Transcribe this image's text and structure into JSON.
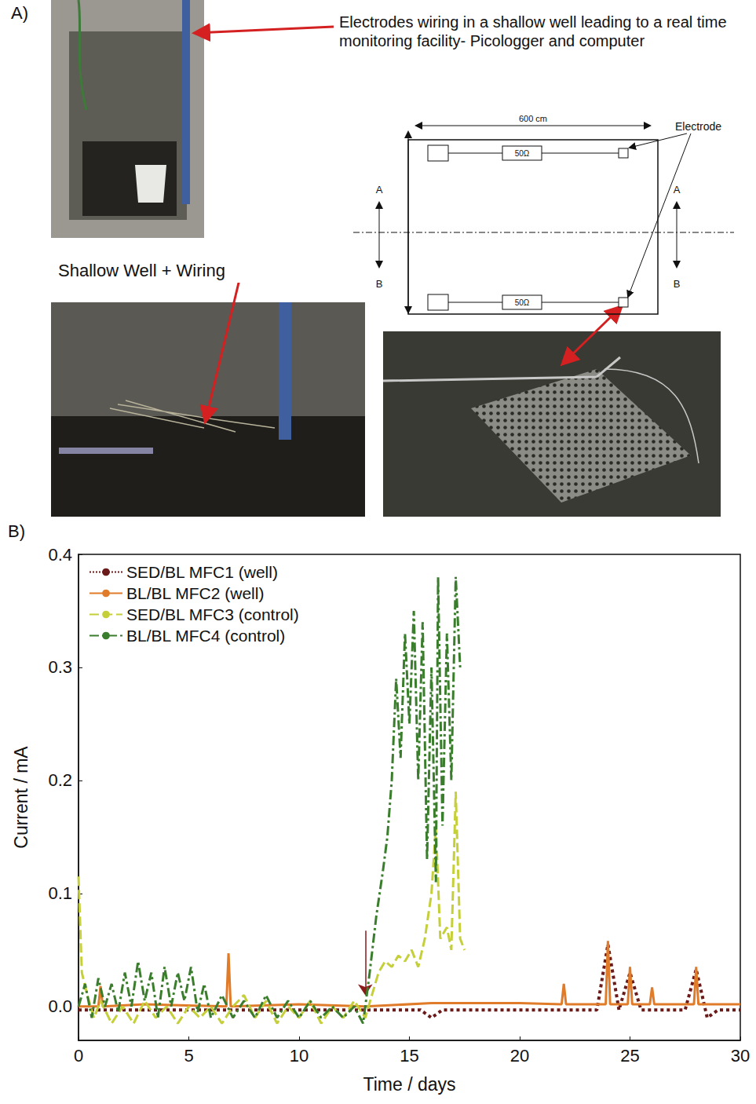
{
  "panel_a": {
    "label": "A)",
    "callout": "Electrodes wiring in a shallow well leading to a real time monitoring facility- Picologger and computer",
    "photo_label": "Shallow Well + Wiring",
    "schematic": {
      "width_label": "600 cm",
      "electrode_label": "Electrode",
      "resistor_labels": [
        "50Ω",
        "50Ω"
      ],
      "section_labels": [
        "A",
        "B",
        "A",
        "B"
      ]
    }
  },
  "chart_data": {
    "type": "line",
    "panel_label": "B)",
    "x_label": "Time / days",
    "y_label": "Current / mA",
    "xlim": [
      0,
      30
    ],
    "xticks": [
      0,
      5,
      10,
      15,
      20,
      25,
      30
    ],
    "ylim": [
      -0.03,
      0.4
    ],
    "yticks": [
      {
        "value": 0,
        "label": "0.0"
      },
      0.1,
      0.2,
      0.3,
      0.4
    ],
    "grid": false,
    "legend": "upper left",
    "arrow": {
      "x": 13,
      "y_start": 0.067,
      "y_end": 0.01,
      "color": "#8b1a1a"
    },
    "series": [
      {
        "name": "SED/BL MFC1 (well)",
        "color": "#6b1a1a",
        "line_style": "dotted",
        "x": [
          0,
          0.5,
          1,
          1.5,
          2,
          2.5,
          3,
          3.5,
          4,
          4.5,
          5,
          5.5,
          6,
          6.5,
          7,
          7.5,
          8,
          8.5,
          9,
          9.5,
          10,
          10.5,
          11,
          11.5,
          12,
          12.5,
          13,
          13.5,
          14,
          14.5,
          15,
          15.5,
          16,
          16.5,
          17,
          17.5,
          18,
          18.5,
          19,
          19.5,
          20,
          20.5,
          21,
          21.5,
          22,
          22.5,
          23,
          23.5,
          24,
          24.5,
          25,
          25.5,
          26,
          26.5,
          27,
          27.5,
          28,
          28.5,
          29,
          29.5,
          30
        ],
        "values": [
          -0.003,
          -0.003,
          -0.003,
          -0.003,
          -0.003,
          -0.003,
          -0.003,
          -0.003,
          -0.003,
          -0.003,
          -0.003,
          -0.003,
          -0.003,
          -0.003,
          -0.003,
          -0.003,
          -0.003,
          -0.003,
          -0.003,
          -0.003,
          -0.003,
          -0.003,
          -0.003,
          -0.003,
          -0.003,
          -0.003,
          -0.003,
          -0.003,
          -0.003,
          -0.003,
          -0.003,
          -0.003,
          -0.01,
          -0.003,
          -0.003,
          -0.003,
          -0.003,
          -0.003,
          -0.003,
          -0.003,
          -0.003,
          -0.003,
          -0.003,
          -0.003,
          -0.003,
          -0.003,
          -0.003,
          -0.003,
          0.055,
          -0.003,
          0.03,
          -0.003,
          -0.003,
          -0.003,
          -0.003,
          -0.003,
          0.033,
          -0.01,
          -0.003,
          -0.003,
          -0.003
        ]
      },
      {
        "name": "BL/BL MFC2 (well)",
        "color": "#e07b29",
        "line_style": "solid",
        "x": [
          0,
          0.9,
          1,
          1.1,
          3,
          6.7,
          6.8,
          6.9,
          10,
          13,
          16,
          20,
          21.9,
          22,
          22.1,
          23.9,
          24,
          24.1,
          24.9,
          25,
          25.1,
          25.9,
          26,
          26.1,
          27.9,
          28,
          28.1,
          30
        ],
        "values": [
          0,
          0,
          0.018,
          0,
          0.002,
          0,
          0.047,
          0,
          0.002,
          0,
          0.003,
          0.003,
          0.002,
          0.02,
          0.002,
          0.002,
          0.058,
          0.002,
          0.002,
          0.035,
          0.002,
          0.002,
          0.017,
          0.002,
          0.002,
          0.035,
          0.002,
          0.002
        ]
      },
      {
        "name": "SED/BL MFC3 (control)",
        "color": "#c5cf3a",
        "line_style": "dashed",
        "x": [
          0,
          0.15,
          0.4,
          0.7,
          1,
          1.5,
          2,
          2.5,
          3,
          3.5,
          4,
          4.5,
          5,
          5.5,
          6,
          6.5,
          7,
          7.5,
          8,
          8.5,
          9,
          9.5,
          10,
          10.5,
          11,
          11.5,
          12,
          12.5,
          13,
          13.3,
          13.6,
          13.9,
          14.2,
          14.5,
          14.8,
          15.1,
          15.4,
          15.7,
          16,
          16.2,
          16.4,
          16.7,
          16.9,
          17.1,
          17.3,
          17.5
        ],
        "values": [
          0.115,
          0.03,
          0.01,
          -0.01,
          0.005,
          -0.015,
          0,
          -0.015,
          0.005,
          -0.01,
          0,
          -0.015,
          0,
          -0.01,
          0,
          -0.015,
          0,
          0.01,
          -0.01,
          0.005,
          -0.015,
          0,
          -0.01,
          0.005,
          -0.015,
          0,
          -0.01,
          0.005,
          -0.01,
          0.01,
          0.03,
          0.04,
          0.035,
          0.045,
          0.04,
          0.05,
          0.035,
          0.06,
          0.1,
          0.16,
          0.06,
          0.07,
          0.05,
          0.19,
          0.06,
          0.05
        ]
      },
      {
        "name": "BL/BL MFC4 (control)",
        "color": "#3a7d2c",
        "line_style": "dashdot",
        "x": [
          0,
          0.3,
          0.6,
          0.9,
          1.2,
          1.5,
          1.8,
          2.1,
          2.4,
          2.7,
          3,
          3.3,
          3.6,
          3.9,
          4.2,
          4.5,
          4.8,
          5.1,
          5.4,
          5.7,
          6,
          6.5,
          7,
          7.5,
          8,
          8.5,
          9,
          9.5,
          10,
          10.5,
          11,
          11.5,
          12,
          12.5,
          12.9,
          13.2,
          13.5,
          13.8,
          14,
          14.2,
          14.4,
          14.6,
          14.8,
          15,
          15.2,
          15.4,
          15.6,
          15.8,
          16,
          16.2,
          16.3,
          16.5,
          16.7,
          16.9,
          17.1,
          17.3
        ],
        "values": [
          0,
          0.02,
          -0.01,
          0.025,
          0,
          0.02,
          -0.005,
          0.03,
          0,
          0.04,
          0.005,
          0.03,
          -0.01,
          0.035,
          0,
          0.03,
          0.005,
          0.035,
          -0.005,
          0.02,
          -0.01,
          0.01,
          -0.01,
          0.005,
          -0.01,
          0.01,
          -0.01,
          0.005,
          -0.01,
          0.005,
          -0.01,
          0,
          -0.01,
          0,
          -0.015,
          0.03,
          0.08,
          0.12,
          0.15,
          0.2,
          0.29,
          0.22,
          0.33,
          0.25,
          0.35,
          0.2,
          0.34,
          0.13,
          0.3,
          0.11,
          0.38,
          0.16,
          0.33,
          0.2,
          0.38,
          0.3
        ]
      }
    ]
  }
}
